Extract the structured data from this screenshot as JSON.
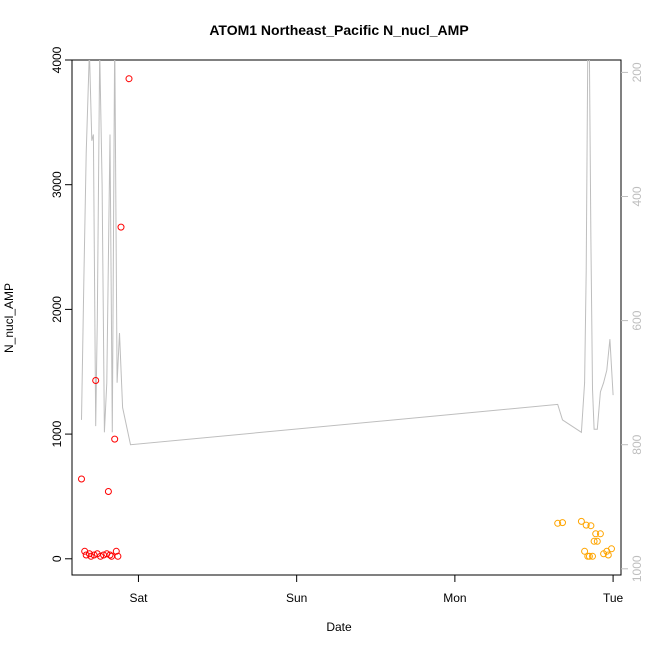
{
  "chart_data": {
    "type": "scatter",
    "title": "ATOM1 Northeast_Pacific N_nucl_AMP",
    "xlabel": "Date",
    "ylabel": "N_nucl_AMP",
    "x_unit": "days",
    "xlim": [
      -0.42,
      3.05
    ],
    "ylim": [
      -130,
      4000
    ],
    "x_ticks": [
      {
        "value": 0,
        "label": "Sat"
      },
      {
        "value": 1,
        "label": "Sun"
      },
      {
        "value": 2,
        "label": "Mon"
      },
      {
        "value": 3,
        "label": "Tue"
      }
    ],
    "y_ticks": [
      0,
      1000,
      2000,
      3000,
      4000
    ],
    "y2_ticks": [
      200,
      400,
      600,
      800,
      1000
    ],
    "y2lim": [
      1010,
      180
    ],
    "colors": {
      "series_red": "#ff0000",
      "series_orange": "#ffa500",
      "line_gray": "#bebebe",
      "axis": "#000000"
    },
    "series": [
      {
        "color": "#ff0000",
        "points": [
          [
            -0.36,
            640
          ],
          [
            -0.34,
            60
          ],
          [
            -0.33,
            30
          ],
          [
            -0.31,
            40
          ],
          [
            -0.3,
            20
          ],
          [
            -0.28,
            30
          ],
          [
            -0.27,
            1430
          ],
          [
            -0.26,
            40
          ],
          [
            -0.24,
            20
          ],
          [
            -0.22,
            30
          ],
          [
            -0.2,
            40
          ],
          [
            -0.19,
            540
          ],
          [
            -0.18,
            30
          ],
          [
            -0.17,
            20
          ],
          [
            -0.15,
            960
          ],
          [
            -0.14,
            60
          ],
          [
            -0.13,
            20
          ],
          [
            -0.11,
            2660
          ],
          [
            -0.06,
            3850
          ]
        ]
      },
      {
        "color": "#ffa500",
        "points": [
          [
            2.65,
            285
          ],
          [
            2.68,
            290
          ],
          [
            2.8,
            300
          ],
          [
            2.82,
            60
          ],
          [
            2.83,
            270
          ],
          [
            2.84,
            20
          ],
          [
            2.85,
            20
          ],
          [
            2.86,
            265
          ],
          [
            2.87,
            20
          ],
          [
            2.88,
            140
          ],
          [
            2.89,
            200
          ],
          [
            2.9,
            140
          ],
          [
            2.92,
            200
          ],
          [
            2.94,
            40
          ],
          [
            2.96,
            60
          ],
          [
            2.97,
            30
          ],
          [
            2.99,
            80
          ]
        ]
      }
    ],
    "line_series": {
      "color": "#bebebe",
      "axis": "right",
      "x": [
        -0.36,
        -0.345,
        -0.33,
        -0.31,
        -0.295,
        -0.285,
        -0.27,
        -0.26,
        -0.245,
        -0.23,
        -0.215,
        -0.2,
        -0.18,
        -0.165,
        -0.15,
        -0.135,
        -0.12,
        -0.1,
        -0.05,
        2.65,
        2.68,
        2.8,
        2.81,
        2.82,
        2.83,
        2.84,
        2.85,
        2.86,
        2.87,
        2.88,
        2.9,
        2.92,
        2.94,
        2.96,
        2.98,
        3.0
      ],
      "y": [
        760,
        530,
        330,
        165,
        310,
        300,
        770,
        600,
        165,
        380,
        780,
        700,
        300,
        780,
        140,
        700,
        620,
        740,
        800,
        735,
        760,
        780,
        740,
        700,
        520,
        160,
        170,
        470,
        710,
        775,
        775,
        715,
        700,
        680,
        630,
        720
      ]
    }
  }
}
